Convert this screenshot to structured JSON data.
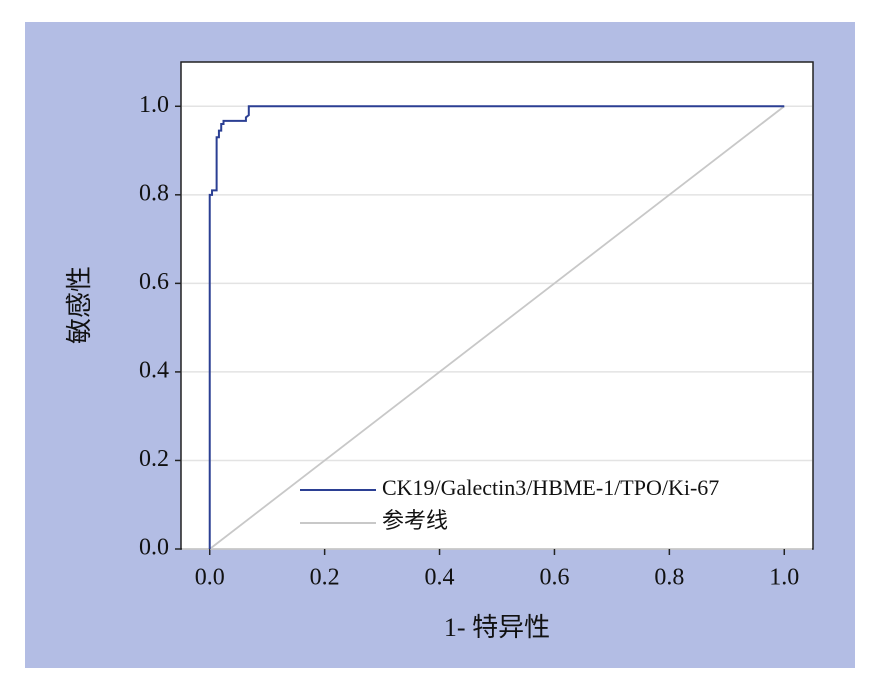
{
  "chart_data": {
    "type": "line",
    "xlabel": "1- 特异性",
    "ylabel": "敏感性",
    "xlim": [
      -0.05,
      1.05
    ],
    "ylim": [
      0,
      1.1
    ],
    "xticks": [
      {
        "value": 0,
        "label": "0.0"
      },
      {
        "value": 0.2,
        "label": "0.2"
      },
      {
        "value": 0.4,
        "label": "0.4"
      },
      {
        "value": 0.6,
        "label": "0.6"
      },
      {
        "value": 0.8,
        "label": "0.8"
      },
      {
        "value": 1,
        "label": "1.0"
      }
    ],
    "yticks": [
      {
        "value": 0,
        "label": "0.0"
      },
      {
        "value": 0.2,
        "label": "0.2"
      },
      {
        "value": 0.4,
        "label": "0.4"
      },
      {
        "value": 0.6,
        "label": "0.6"
      },
      {
        "value": 0.8,
        "label": "0.8"
      },
      {
        "value": 1,
        "label": "1.0"
      }
    ],
    "grid": true,
    "legend": "lower right",
    "series": [
      {
        "name": "CK19/Galectin3/HBME-1/TPO/Ki-67",
        "color": "#2b3f93",
        "x": [
          0,
          0,
          0.004,
          0.004,
          0.012,
          0.012,
          0.016,
          0.016,
          0.02,
          0.02,
          0.024,
          0.024,
          0.063,
          0.063,
          0.068,
          0.068,
          1
        ],
        "values": [
          0,
          0.8,
          0.8,
          0.81,
          0.81,
          0.93,
          0.93,
          0.945,
          0.945,
          0.96,
          0.96,
          0.967,
          0.967,
          0.975,
          0.98,
          1,
          1
        ]
      },
      {
        "name": "参考线",
        "color": "#c8c8c8",
        "x": [
          0,
          1
        ],
        "values": [
          0,
          1
        ]
      }
    ]
  }
}
